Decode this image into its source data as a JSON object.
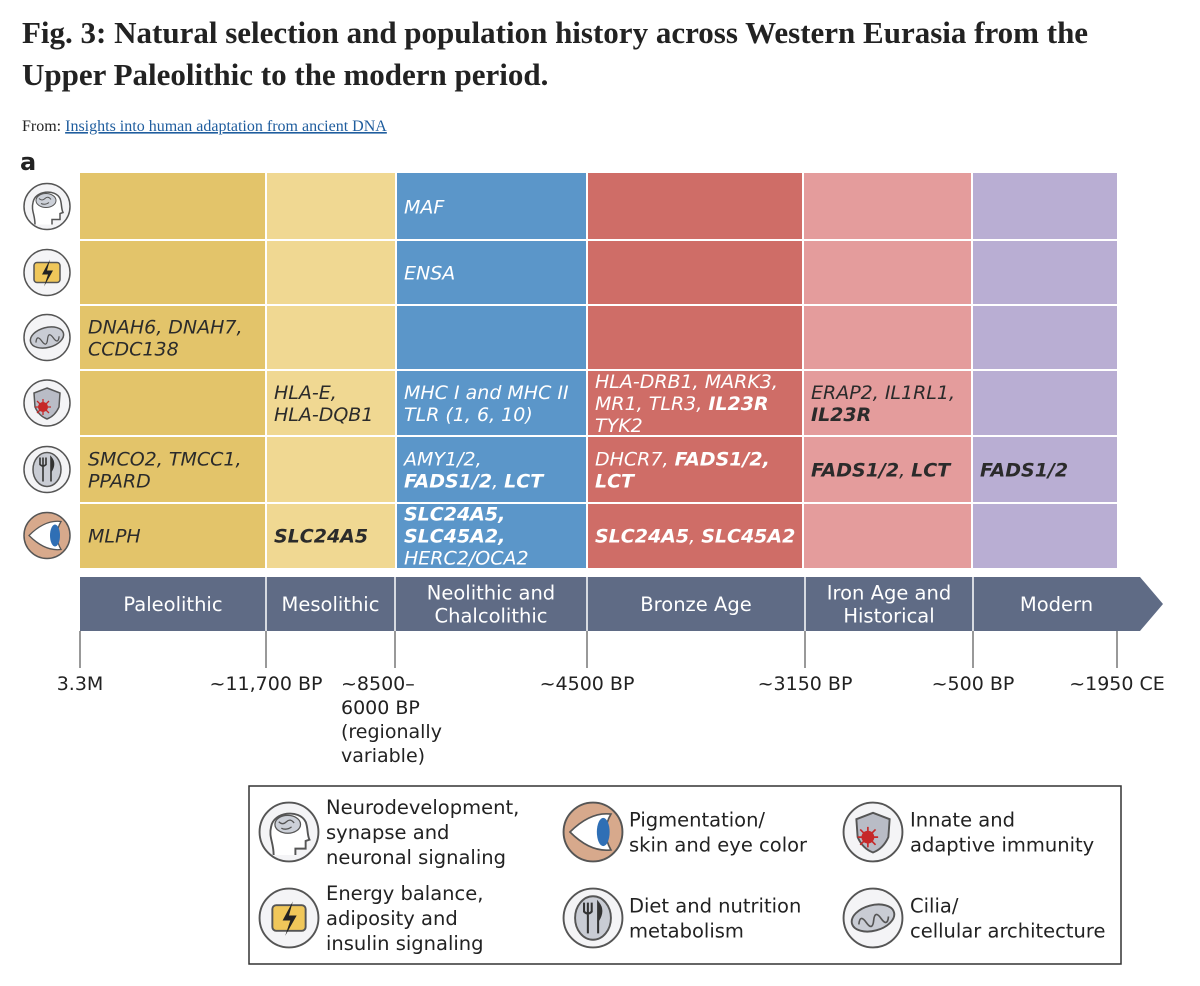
{
  "header": {
    "title": [
      "Fig. 3: Natural selection and population history across Western Eurasia from the",
      "Upper Paleolithic to the modern period."
    ],
    "source_prefix": "From:",
    "source_link": "Insights into human adaptation from ancient DNA",
    "panel": "a"
  },
  "grid": {
    "rows": [
      [
        null,
        null,
        {
          "lines": [
            [
              {
                "text": "MAF",
                "bold": false
              }
            ]
          ]
        },
        null,
        null,
        null
      ],
      [
        null,
        null,
        {
          "lines": [
            [
              {
                "text": "ENSA",
                "bold": false
              }
            ]
          ]
        },
        null,
        null,
        null
      ],
      [
        {
          "lines": [
            [
              {
                "text": "DNAH6, DNAH7,",
                "bold": false
              }
            ],
            [
              {
                "text": "CCDC138",
                "bold": false
              }
            ]
          ]
        },
        null,
        null,
        null,
        null,
        null
      ],
      [
        null,
        {
          "lines": [
            [
              {
                "text": "HLA-E,",
                "bold": false
              }
            ],
            [
              {
                "text": "HLA-DQB1",
                "bold": false
              }
            ]
          ]
        },
        {
          "lines": [
            [
              {
                "text": "MHC I and MHC II",
                "bold": false
              }
            ],
            [
              {
                "text": "TLR (1, 6, 10)",
                "bold": false
              }
            ]
          ]
        },
        {
          "lines": [
            [
              {
                "text": "HLA-DRB1, MARK3,",
                "bold": false
              }
            ],
            [
              {
                "text": "MR1, TLR3,",
                "bold": false
              },
              {
                "text": "IL23R",
                "bold": true
              }
            ],
            [
              {
                "text": "TYK2",
                "bold": false
              }
            ]
          ]
        },
        {
          "lines": [
            [
              {
                "text": "ERAP2, IL1RL1,",
                "bold": false
              }
            ],
            [
              {
                "text": "IL23R",
                "bold": true
              }
            ]
          ]
        },
        null
      ],
      [
        {
          "lines": [
            [
              {
                "text": "SMCO2, TMCC1,",
                "bold": false
              }
            ],
            [
              {
                "text": "PPARD",
                "bold": false
              }
            ]
          ]
        },
        null,
        {
          "lines": [
            [
              {
                "text": "AMY1/2,",
                "bold": false
              }
            ],
            [
              {
                "text": "FADS1/2",
                "bold": true
              },
              {
                "text": ",",
                "bold": false
              },
              {
                "text": "LCT",
                "bold": true
              }
            ]
          ]
        },
        {
          "lines": [
            [
              {
                "text": "DHCR7,",
                "bold": false
              },
              {
                "text": "FADS1/2,",
                "bold": true
              }
            ],
            [
              {
                "text": "LCT",
                "bold": true
              }
            ]
          ]
        },
        {
          "lines": [
            [
              {
                "text": "FADS1/2",
                "bold": true
              },
              {
                "text": ",",
                "bold": false
              },
              {
                "text": "LCT",
                "bold": true
              }
            ]
          ]
        },
        {
          "lines": [
            [
              {
                "text": "FADS1/2",
                "bold": true
              }
            ]
          ]
        }
      ],
      [
        {
          "lines": [
            [
              {
                "text": "MLPH",
                "bold": false
              }
            ]
          ]
        },
        {
          "lines": [
            [
              {
                "text": "SLC24A5",
                "bold": true
              }
            ]
          ]
        },
        {
          "lines": [
            [
              {
                "text": "SLC24A5,",
                "bold": true
              }
            ],
            [
              {
                "text": "SLC45A2,",
                "bold": true
              }
            ],
            [
              {
                "text": "HERC2/OCA2",
                "bold": false
              }
            ]
          ]
        },
        {
          "lines": [
            [
              {
                "text": "SLC24A5",
                "bold": true
              },
              {
                "text": ",",
                "bold": false
              },
              {
                "text": "SLC45A2",
                "bold": true
              }
            ]
          ]
        },
        null,
        null
      ]
    ]
  },
  "timeline": {
    "periods": [
      [
        "Paleolithic"
      ],
      [
        "Mesolithic"
      ],
      [
        "Neolithic and",
        "Chalcolithic"
      ],
      [
        "Bronze Age"
      ],
      [
        "Iron Age and",
        "Historical"
      ],
      [
        "Modern"
      ]
    ],
    "dates": [
      [
        "3.3M"
      ],
      [
        "~11,700 BP"
      ],
      [
        "~8500–",
        "6000 BP",
        "(regionally",
        "variable)"
      ],
      [
        "~4500 BP"
      ],
      [
        "~3150 BP"
      ],
      [
        "~500 BP"
      ],
      [
        "~1950 CE"
      ]
    ]
  },
  "legend": [
    [
      "Neurodevelopment,",
      "synapse and",
      "neuronal signaling"
    ],
    [
      "Pigmentation/",
      "skin and eye color"
    ],
    [
      "Innate and",
      "adaptive immunity"
    ],
    [
      "Energy balance,",
      "adiposity and",
      "insulin signaling"
    ],
    [
      "Diet and nutrition",
      "metabolism"
    ],
    [
      "Cilia/",
      "cellular architecture"
    ]
  ]
}
